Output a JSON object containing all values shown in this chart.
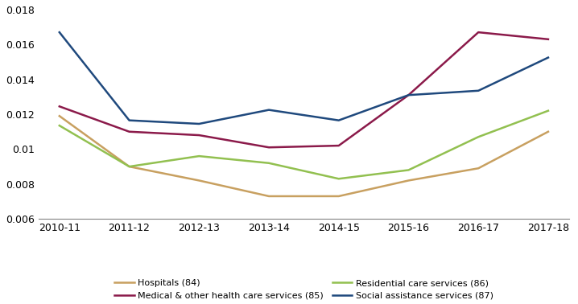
{
  "x_labels": [
    "2010-11",
    "2011-12",
    "2012-13",
    "2013-14",
    "2014-15",
    "2015-16",
    "2016-17",
    "2017-18"
  ],
  "series": {
    "Hospitals (84)": {
      "values": [
        0.0119,
        0.009,
        0.0082,
        0.0073,
        0.0073,
        0.0082,
        0.0089,
        0.011
      ],
      "color": "#C8A060"
    },
    "Medical & other health care services (85)": {
      "values": [
        0.01245,
        0.011,
        0.0108,
        0.0101,
        0.0102,
        0.0131,
        0.0167,
        0.0163
      ],
      "color": "#8B1A4A"
    },
    "Residential care services (86)": {
      "values": [
        0.01135,
        0.009,
        0.0096,
        0.0092,
        0.0083,
        0.0088,
        0.0107,
        0.0122
      ],
      "color": "#92C050"
    },
    "Social assistance services (87)": {
      "values": [
        0.0167,
        0.01165,
        0.01145,
        0.01225,
        0.01165,
        0.0131,
        0.01335,
        0.01525
      ],
      "color": "#1F497D"
    }
  },
  "plot_order": [
    "Hospitals (84)",
    "Medical & other health care services (85)",
    "Residential care services (86)",
    "Social assistance services (87)"
  ],
  "legend_order": [
    "Hospitals (84)",
    "Medical & other health care services (85)",
    "Residential care services (86)",
    "Social assistance services (87)"
  ],
  "ylim": [
    0.006,
    0.018
  ],
  "yticks": [
    0.006,
    0.008,
    0.01,
    0.012,
    0.014,
    0.016,
    0.018
  ],
  "background_color": "#ffffff",
  "linewidth": 1.8,
  "tick_fontsize": 9,
  "legend_fontsize": 8
}
